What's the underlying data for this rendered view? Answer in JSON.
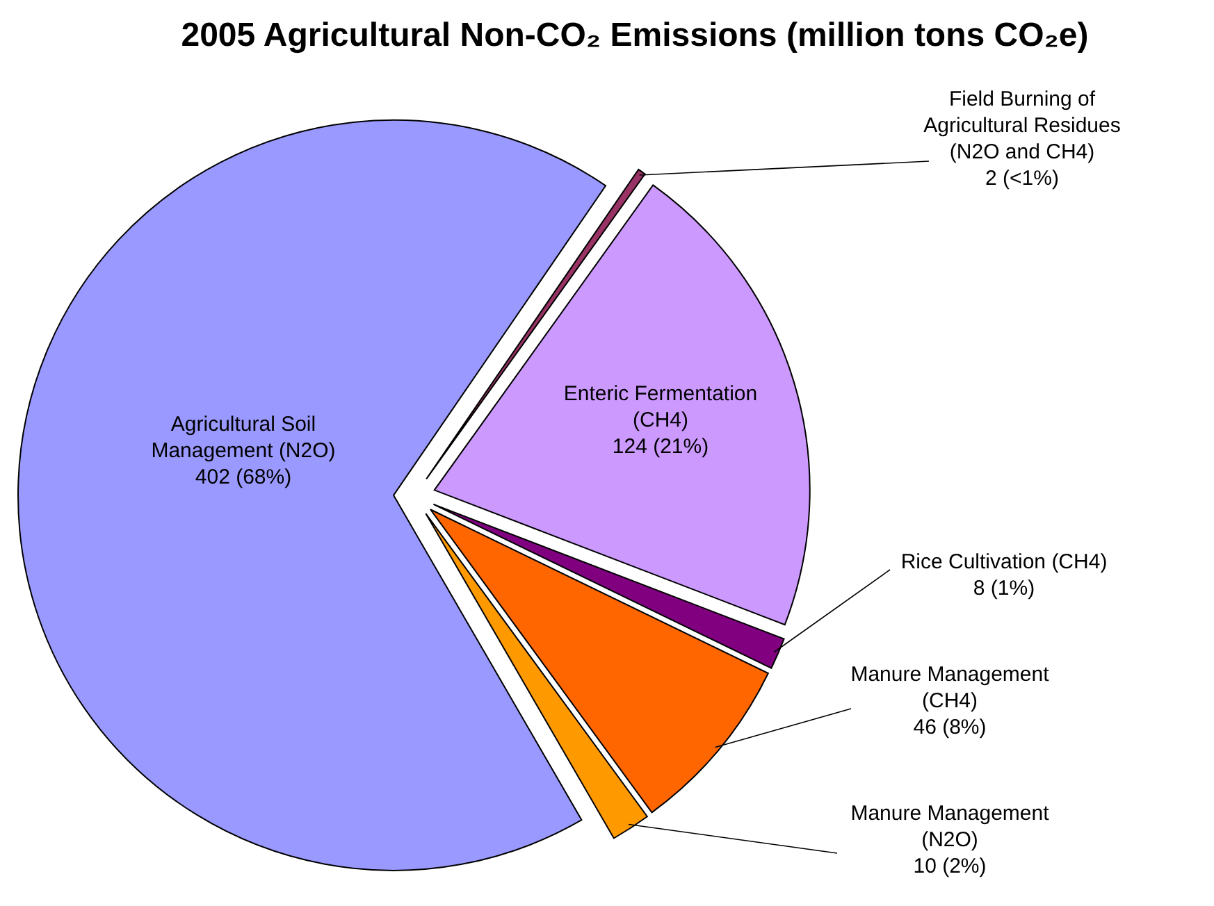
{
  "chart_data": {
    "type": "pie",
    "title": "2005 Agricultural Non-CO₂ Emissions (million tons CO₂e)",
    "categories": [
      "Field Burning of Agricultural Residues (N2O and CH4)",
      "Enteric Fermentation (CH4)",
      "Rice Cultivation (CH4)",
      "Manure Management (CH4)",
      "Manure Management (N2O)",
      "Agricultural Soil Management (N2O)"
    ],
    "values": [
      2,
      124,
      8,
      46,
      10,
      402
    ],
    "colors": [
      "#993366",
      "#cc99ff",
      "#800080",
      "#ff6600",
      "#ff9900",
      "#9999ff"
    ],
    "value_labels": [
      "2 (<1%)",
      "124 (21%)",
      "8 (1%)",
      "46 (8%)",
      "10 (2%)",
      "402 (68%)"
    ]
  }
}
